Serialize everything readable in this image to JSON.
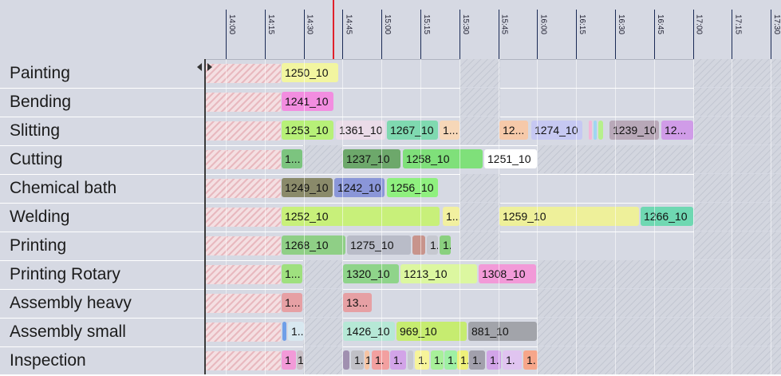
{
  "timeline": {
    "ticks": [
      "14:00",
      "14:15",
      "14:30",
      "14:45",
      "15:00",
      "15:15",
      "15:30",
      "15:45",
      "16:00",
      "16:15",
      "16:30",
      "16:45",
      "17:00",
      "17:15",
      "17:30"
    ]
  },
  "resources": [
    {
      "label": "Painting",
      "tasks": [
        {
          "label": "1250_10",
          "color": "#f2f5a0"
        }
      ]
    },
    {
      "label": "Bending",
      "tasks": [
        {
          "label": "1241_10",
          "color": "#f28de0"
        }
      ]
    },
    {
      "label": "Slitting",
      "tasks": [
        {
          "label": "1253_10",
          "color": "#b7f078"
        },
        {
          "label": "1361_10",
          "color": "#eadbe8"
        },
        {
          "label": "1267_10",
          "color": "#7fd9b0"
        },
        {
          "label": "1...",
          "color": "#f6d7b8"
        },
        {
          "label": "12...",
          "color": "#f6c9a9"
        },
        {
          "label": "1274_10",
          "color": "#c6c8f2"
        },
        {
          "label": "",
          "color": "#f4b6d8"
        },
        {
          "label": "",
          "color": "#9fd6f2"
        },
        {
          "label": "",
          "color": "#b6f08c"
        },
        {
          "label": "1239_10",
          "color": "#b8a8b8"
        },
        {
          "label": "12...",
          "color": "#d09ce8"
        }
      ]
    },
    {
      "label": "Cutting",
      "tasks": [
        {
          "label": "1...",
          "color": "#7cc47f"
        },
        {
          "label": "1237_10",
          "color": "#6da86b"
        },
        {
          "label": "1258_10",
          "color": "#7fe07a"
        },
        {
          "label": "1251_10",
          "color": "#ffffff"
        }
      ]
    },
    {
      "label": "Chemical bath",
      "tasks": [
        {
          "label": "1249_10",
          "color": "#8a8a6a"
        },
        {
          "label": "1242_10",
          "color": "#8a96d8"
        },
        {
          "label": "1256_10",
          "color": "#8ff07f"
        }
      ]
    },
    {
      "label": "Welding",
      "tasks": [
        {
          "label": "1252_10",
          "color": "#c8f07a"
        },
        {
          "label": "1...",
          "color": "#f2f0a0"
        },
        {
          "label": "1259_10",
          "color": "#eef09a"
        },
        {
          "label": "1266_10",
          "color": "#6fd8b2"
        }
      ]
    },
    {
      "label": "Printing",
      "tasks": [
        {
          "label": "1268_10",
          "color": "#8fcf86"
        },
        {
          "label": "1275_10",
          "color": "#b9bcc8"
        },
        {
          "label": "",
          "color": "#c8948c"
        },
        {
          "label": "1...",
          "color": "#c6c8d0"
        },
        {
          "label": "1...",
          "color": "#8ad07f"
        }
      ]
    },
    {
      "label": "Printing Rotary",
      "tasks": [
        {
          "label": "1...",
          "color": "#9fe07f"
        },
        {
          "label": "1320_10",
          "color": "#8fd48a"
        },
        {
          "label": "1213_10",
          "color": "#dcf7a0"
        },
        {
          "label": "1308_10",
          "color": "#f29ad8"
        }
      ]
    },
    {
      "label": "Assembly heavy",
      "tasks": [
        {
          "label": "1...",
          "color": "#e6a0a4"
        },
        {
          "label": "13...",
          "color": "#e6a0a4"
        }
      ]
    },
    {
      "label": "Assembly small",
      "tasks": [
        {
          "label": "",
          "color": "#6f9fe8"
        },
        {
          "label": "1...",
          "color": "#d8e8f0"
        },
        {
          "label": "1426_10",
          "color": "#b6e8d6"
        },
        {
          "label": "969_10",
          "color": "#c6ec70"
        },
        {
          "label": "881_10",
          "color": "#a2a4aa"
        }
      ]
    },
    {
      "label": "Inspection",
      "tasks": [
        {
          "label": "1",
          "color": "#f29ad8"
        },
        {
          "label": "1",
          "color": "#c9c0c6"
        },
        {
          "label": "",
          "color": "#a090b0"
        },
        {
          "label": "1.",
          "color": "#c0c0c6"
        },
        {
          "label": "1.",
          "color": "#f6c4a4"
        },
        {
          "label": "1.",
          "color": "#f2a0a0"
        },
        {
          "label": "1.",
          "color": "#d2a4e8"
        },
        {
          "label": "",
          "color": "#c6c8d0"
        },
        {
          "label": "1.",
          "color": "#f7f49a"
        },
        {
          "label": "1.",
          "color": "#a8f09a"
        },
        {
          "label": "1.",
          "color": "#9ff0a4"
        },
        {
          "label": "1.",
          "color": "#eef07a"
        },
        {
          "label": "1.",
          "color": "#a2a0ac"
        },
        {
          "label": "1.",
          "color": "#d2a4e8"
        },
        {
          "label": "1.",
          "color": "#e0c4f0"
        },
        {
          "label": "1.",
          "color": "#f6a68a"
        }
      ]
    }
  ]
}
